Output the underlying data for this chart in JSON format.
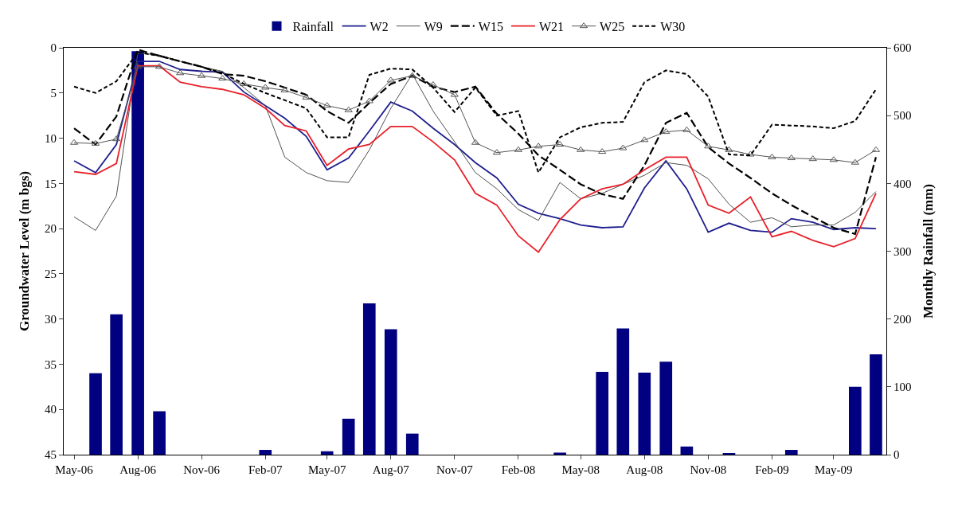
{
  "chart_data": {
    "type": "line",
    "xlabel": null,
    "ylabel": "Groundwater Level (m bgs)",
    "y2label": "Monthly Rainfall (mm)",
    "x": [
      "2006-05",
      "2006-06",
      "2006-07",
      "2006-08",
      "2006-09",
      "2006-10",
      "2006-11",
      "2006-12",
      "2007-01",
      "2007-02",
      "2007-03",
      "2007-04",
      "2007-05",
      "2007-06",
      "2007-07",
      "2007-08",
      "2007-09",
      "2007-10",
      "2007-11",
      "2007-12",
      "2008-01",
      "2008-02",
      "2008-03",
      "2008-04",
      "2008-05",
      "2008-06",
      "2008-07",
      "2008-08",
      "2008-09",
      "2008-10",
      "2008-11",
      "2008-12",
      "2009-01",
      "2009-02",
      "2009-03",
      "2009-04",
      "2009-05",
      "2009-06",
      "2009-07"
    ],
    "xlim": [
      "2006-04-16",
      "2009-07-16"
    ],
    "xticks": [
      {
        "value": "2006-05",
        "label": "May-06"
      },
      {
        "value": "2006-08",
        "label": "Aug-06"
      },
      {
        "value": "2006-11",
        "label": "Nov-06"
      },
      {
        "value": "2007-02",
        "label": "Feb-07"
      },
      {
        "value": "2007-05",
        "label": "May-07"
      },
      {
        "value": "2007-08",
        "label": "Aug-07"
      },
      {
        "value": "2007-11",
        "label": "Nov-07"
      },
      {
        "value": "2008-02",
        "label": "Feb-08"
      },
      {
        "value": "2008-05",
        "label": "May-08"
      },
      {
        "value": "2008-08",
        "label": "Aug-08"
      },
      {
        "value": "2008-11",
        "label": "Nov-08"
      },
      {
        "value": "2009-02",
        "label": "Feb-09"
      },
      {
        "value": "2009-05",
        "label": "May-09"
      }
    ],
    "ylim": [
      45,
      0
    ],
    "yticks": [
      0,
      5,
      10,
      15,
      20,
      25,
      30,
      35,
      40,
      45
    ],
    "y2lim": [
      0,
      600
    ],
    "y2ticks": [
      0,
      100,
      200,
      300,
      400,
      500,
      600
    ],
    "legend": "top",
    "series": [
      {
        "name": "Rainfall",
        "type": "bar",
        "axis": "y2",
        "color": "#000080",
        "values": [
          0,
          120,
          207,
          595,
          64,
          0,
          0,
          0,
          0,
          7,
          0,
          0,
          5,
          53,
          223,
          185,
          31,
          0,
          0,
          0,
          0,
          0,
          0,
          3,
          0,
          122,
          186,
          121,
          137,
          12,
          0,
          2,
          0,
          0,
          7,
          0,
          0,
          100,
          148
        ]
      },
      {
        "name": "W2",
        "color": "#1f1f8f",
        "line_style": "solid",
        "values": [
          12.5,
          13.8,
          10.7,
          1.5,
          1.5,
          2.4,
          2.6,
          2.7,
          4.9,
          6.4,
          7.8,
          9.8,
          13.5,
          12.2,
          9.2,
          6.0,
          7.0,
          8.9,
          10.7,
          12.7,
          14.4,
          17.3,
          18.3,
          18.9,
          19.6,
          19.9,
          19.8,
          15.5,
          12.5,
          15.6,
          20.4,
          19.4,
          20.2,
          20.4,
          18.9,
          19.3,
          20.1,
          19.9,
          20.0
        ]
      },
      {
        "name": "W9",
        "color": "#505050",
        "line_style": "solid",
        "values": [
          18.7,
          20.2,
          16.4,
          0.6,
          0.8,
          1.5,
          2.1,
          2.6,
          4.4,
          6.4,
          12.1,
          13.8,
          14.7,
          14.9,
          11.3,
          6.7,
          2.9,
          7.0,
          10.4,
          13.8,
          15.6,
          17.9,
          19.1,
          14.9,
          16.7,
          16.1,
          15.1,
          14.1,
          12.7,
          13.0,
          14.5,
          17.3,
          19.3,
          18.8,
          19.8,
          19.6,
          19.6,
          18.2,
          15.9
        ]
      },
      {
        "name": "W15",
        "color": "#000000",
        "line_style": "dashed",
        "values": [
          8.9,
          10.7,
          7.6,
          0.2,
          0.9,
          1.5,
          2.1,
          2.9,
          3.1,
          3.7,
          4.4,
          5.2,
          7.0,
          8.3,
          6.1,
          4.0,
          3.1,
          4.3,
          4.9,
          4.3,
          7.3,
          9.5,
          11.9,
          13.5,
          15.1,
          16.2,
          16.7,
          13.0,
          8.3,
          7.2,
          11.0,
          12.8,
          14.4,
          16.1,
          17.4,
          18.7,
          19.9,
          20.6,
          12.1
        ]
      },
      {
        "name": "W21",
        "color": "#e8202a",
        "line_style": "solid",
        "values": [
          13.7,
          14.0,
          12.8,
          2.0,
          2.0,
          3.8,
          4.3,
          4.6,
          5.2,
          6.7,
          8.6,
          9.2,
          13.0,
          11.2,
          10.7,
          8.7,
          8.7,
          10.4,
          12.4,
          16.1,
          17.4,
          20.8,
          22.6,
          19.0,
          16.7,
          15.6,
          15.1,
          13.5,
          12.1,
          12.1,
          17.4,
          18.3,
          16.5,
          20.9,
          20.3,
          21.3,
          22.0,
          21.1,
          16.1
        ]
      },
      {
        "name": "W25",
        "color": "#555555",
        "line_style": "solid",
        "marker": "triangle",
        "values": [
          10.5,
          10.6,
          10.1,
          2.1,
          2.1,
          2.8,
          3.1,
          3.4,
          4.0,
          4.4,
          4.7,
          5.5,
          6.4,
          6.9,
          5.9,
          3.6,
          3.1,
          4.1,
          5.2,
          10.5,
          11.6,
          11.3,
          10.9,
          10.7,
          11.3,
          11.5,
          11.1,
          10.2,
          9.3,
          9.1,
          10.9,
          11.3,
          11.8,
          12.1,
          12.2,
          12.3,
          12.4,
          12.7,
          11.3
        ]
      },
      {
        "name": "W30",
        "color": "#000000",
        "line_style": "dotted",
        "values": [
          4.3,
          5.0,
          3.7,
          0.5,
          0.9,
          1.5,
          2.1,
          2.8,
          4.0,
          5.0,
          5.8,
          6.7,
          9.9,
          9.9,
          3.0,
          2.3,
          2.4,
          4.4,
          7.1,
          4.4,
          7.5,
          7.0,
          13.8,
          9.9,
          8.8,
          8.3,
          8.2,
          3.8,
          2.5,
          2.9,
          5.4,
          11.8,
          11.9,
          8.5,
          8.6,
          8.7,
          8.9,
          8.1,
          4.6
        ]
      }
    ]
  }
}
